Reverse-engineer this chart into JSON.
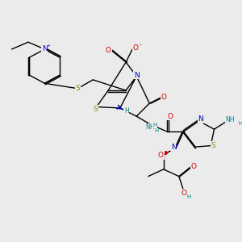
{
  "background_color": "#ebebeb",
  "figsize": [
    3.0,
    3.0
  ],
  "dpi": 100,
  "line_color": "#000000",
  "line_width": 1.0,
  "xlim": [
    0,
    10
  ],
  "ylim": [
    0,
    10
  ]
}
